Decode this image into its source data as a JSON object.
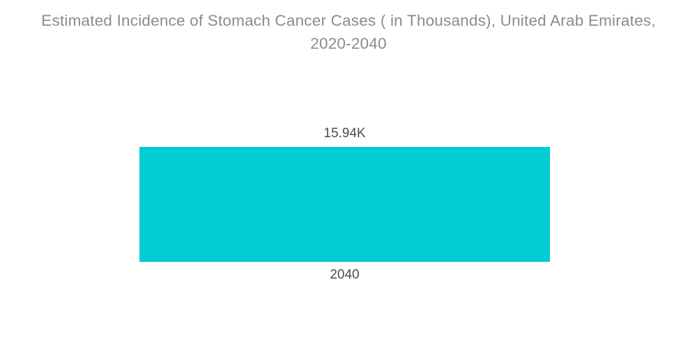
{
  "chart_data": {
    "type": "bar",
    "title": "Estimated Incidence of Stomach Cancer Cases ( in Thousands), United Arab Emirates, 2020-2040",
    "categories": [
      "2040"
    ],
    "values": [
      15.94
    ],
    "value_labels": [
      "15.94K"
    ],
    "xlabel": "",
    "ylabel": "",
    "ylim": [
      0,
      15.94
    ],
    "grid": false,
    "legend": "none",
    "bar_color": "#00cdd2"
  },
  "labels": {
    "value": "15.94K",
    "category": "2040"
  },
  "colors": {
    "bar": "#00cdd2",
    "title_text": "#8c8c8c",
    "label_text": "#4d4d4d",
    "background": "#ffffff"
  }
}
